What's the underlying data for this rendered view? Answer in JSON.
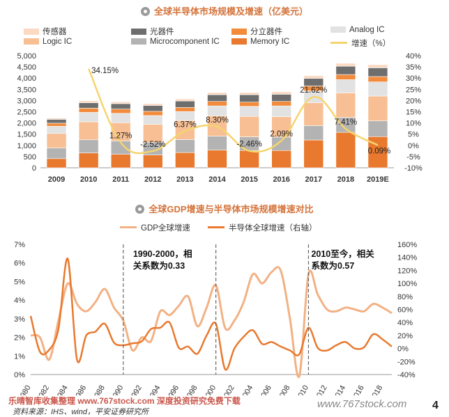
{
  "chart_data": [
    {
      "type": "bar",
      "stacked": true,
      "title": "全球半导体市场规模及增速（亿美元）",
      "categories": [
        "2009",
        "2010",
        "2011",
        "2012",
        "2013",
        "2014",
        "2015",
        "2016",
        "2017",
        "2018",
        "2019E"
      ],
      "ylim": [
        0,
        5000
      ],
      "y_ticks": [
        "0",
        "500",
        "1,000",
        "1,500",
        "2,000",
        "2,500",
        "3,000",
        "3,500",
        "4,000",
        "4,500",
        "5,000"
      ],
      "y2lim": [
        -10,
        40
      ],
      "y2_ticks": [
        "-10%",
        "-5%",
        "0%",
        "5%",
        "10%",
        "15%",
        "20%",
        "25%",
        "30%",
        "35%",
        "40%"
      ],
      "series": [
        {
          "name": "Memory IC",
          "color": "#e8792e",
          "values": [
            410,
            660,
            600,
            570,
            680,
            790,
            770,
            770,
            1240,
            1580,
            1390
          ]
        },
        {
          "name": "Microcomponent IC",
          "color": "#b3b3b3",
          "values": [
            470,
            590,
            600,
            560,
            580,
            620,
            610,
            600,
            640,
            670,
            700
          ]
        },
        {
          "name": "Logic IC",
          "color": "#f7bf93",
          "values": [
            650,
            800,
            810,
            810,
            850,
            910,
            910,
            910,
            1020,
            1090,
            1110
          ]
        },
        {
          "name": "Analog IC",
          "color": "#e2e2e2",
          "values": [
            320,
            420,
            420,
            390,
            400,
            440,
            450,
            480,
            530,
            590,
            630
          ]
        },
        {
          "name": "分立器件",
          "color": "#f28b3c",
          "values": [
            140,
            190,
            190,
            190,
            180,
            200,
            190,
            200,
            220,
            230,
            240
          ]
        },
        {
          "name": "光器件",
          "color": "#6e6e6e",
          "values": [
            170,
            240,
            240,
            260,
            290,
            300,
            330,
            320,
            340,
            370,
            390
          ]
        },
        {
          "name": "传感器",
          "color": "#fbd9c2",
          "values": [
            60,
            90,
            85,
            80,
            90,
            100,
            100,
            110,
            120,
            130,
            140
          ]
        }
      ],
      "growth": {
        "name": "增速（%）",
        "color": "#f5d46e",
        "values": [
          null,
          34.15,
          1.27,
          -2.52,
          6.37,
          8.3,
          -2.46,
          2.09,
          21.62,
          7.41,
          0.09
        ],
        "labels": [
          "",
          "34.15%",
          "1.27%",
          "-2.52%",
          "6.37%",
          "8.30%",
          "-2.46%",
          "2.09%",
          "21.62%",
          "7.41%",
          "0.09%"
        ]
      }
    },
    {
      "type": "line",
      "title": "全球GDP增速与半导体市场规模增速对比",
      "x": [
        1980,
        1981,
        1982,
        1983,
        1984,
        1985,
        1986,
        1987,
        1988,
        1989,
        1990,
        1991,
        1992,
        1993,
        1994,
        1995,
        1996,
        1997,
        1998,
        1999,
        2000,
        2001,
        2002,
        2003,
        2004,
        2005,
        2006,
        2007,
        2008,
        2009,
        2010,
        2011,
        2012,
        2013,
        2014,
        2015,
        2016,
        2017,
        2018,
        2019
      ],
      "x_ticks": [
        "980",
        "982",
        "984",
        "986",
        "988",
        "990",
        "992",
        "994",
        "996",
        "998",
        "000",
        "002",
        "004",
        "006",
        "008",
        "010",
        "012",
        "014",
        "016",
        "018"
      ],
      "ylim": [
        0,
        7
      ],
      "y_ticks": [
        "0%",
        "1%",
        "2%",
        "3%",
        "4%",
        "5%",
        "6%",
        "7%"
      ],
      "y2lim": [
        -40,
        160
      ],
      "y2_ticks": [
        "-40%",
        "-20%",
        "0%",
        "20%",
        "40%",
        "60%",
        "80%",
        "100%",
        "120%",
        "140%",
        "160%"
      ],
      "series": [
        {
          "name": "GDP全球增速",
          "color": "#f2b184",
          "axis": "left",
          "values": [
            2.1,
            2.0,
            0.8,
            2.9,
            4.9,
            3.8,
            3.4,
            3.9,
            4.6,
            3.6,
            2.9,
            1.3,
            2.0,
            1.8,
            3.4,
            3.2,
            3.7,
            4.2,
            2.6,
            3.6,
            4.8,
            2.5,
            2.9,
            3.9,
            5.4,
            4.9,
            5.5,
            5.6,
            3.0,
            -0.1,
            5.4,
            4.3,
            3.5,
            3.4,
            3.6,
            3.5,
            3.4,
            3.8,
            3.6,
            3.3
          ]
        },
        {
          "name": "半导体全球增速（右轴）",
          "color": "#e8792e",
          "axis": "right",
          "values": [
            50,
            -5,
            -2,
            30,
            138,
            -17,
            20,
            26,
            38,
            9,
            5,
            8,
            11,
            30,
            32,
            40,
            1,
            3,
            -8,
            20,
            38,
            -32,
            0,
            18,
            28,
            7,
            10,
            3,
            -3,
            -9,
            32,
            1,
            -3,
            5,
            10,
            0,
            2,
            22,
            14,
            3
          ]
        }
      ],
      "annotations": [
        {
          "line1": "1990-2000，相",
          "line2": "关系数为0.33"
        },
        {
          "line1": "2010至今，相关",
          "line2": "系数为0.57"
        }
      ]
    }
  ],
  "footer": {
    "watermark_left": "乐晴智库收集整理 www.767stock.com 深度投资研究免费下载",
    "watermark_right": "www.767stock.com",
    "source": "资料来源：IHS、wind，平安证券研究所",
    "page_number": "4"
  }
}
